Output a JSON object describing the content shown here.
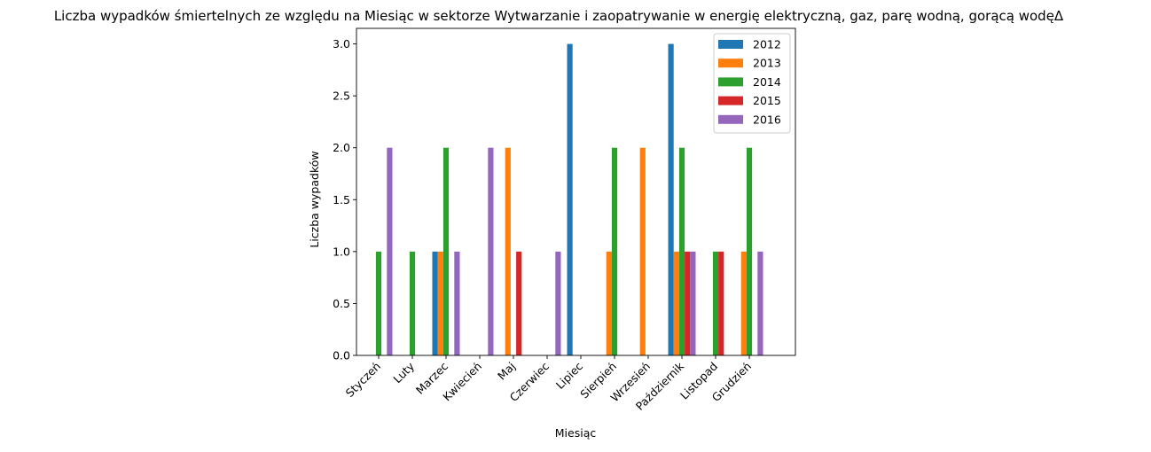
{
  "chart_data": {
    "type": "bar",
    "title": "Liczba wypadków śmiertelnych ze względu na Miesiąc w sektorze Wytwarzanie i zaopatrywanie w energię elektryczną, gaz, parę wodną, gorącą wodęΔ",
    "xlabel": "Miesiąc",
    "ylabel": "Liczba wypadków",
    "ylim": [
      0,
      3.15
    ],
    "yticks": [
      "0.0",
      "0.5",
      "1.0",
      "1.5",
      "2.0",
      "2.5",
      "3.0"
    ],
    "categories": [
      "Styczeń",
      "Luty",
      "Marzec",
      "Kwiecień",
      "Maj",
      "Czerwiec",
      "Lipiec",
      "Sierpień",
      "Wrzesień",
      "Październik",
      "Listopad",
      "Grudzień"
    ],
    "legend_position": "top-right",
    "grid": false,
    "series": [
      {
        "name": "2012",
        "color": "#1f77b4",
        "values": [
          0,
          0,
          1,
          0,
          0,
          0,
          3,
          0,
          0,
          3,
          0,
          0
        ]
      },
      {
        "name": "2013",
        "color": "#ff7f0e",
        "values": [
          0,
          0,
          1,
          0,
          2,
          0,
          0,
          1,
          2,
          1,
          0,
          1
        ]
      },
      {
        "name": "2014",
        "color": "#2ca02c",
        "values": [
          1,
          1,
          2,
          0,
          0,
          0,
          0,
          2,
          0,
          2,
          1,
          2
        ]
      },
      {
        "name": "2015",
        "color": "#d62728",
        "values": [
          0,
          0,
          0,
          0,
          1,
          0,
          0,
          0,
          0,
          1,
          1,
          0
        ]
      },
      {
        "name": "2016",
        "color": "#9467bd",
        "values": [
          2,
          0,
          1,
          2,
          0,
          1,
          0,
          0,
          0,
          1,
          0,
          1
        ]
      }
    ]
  }
}
